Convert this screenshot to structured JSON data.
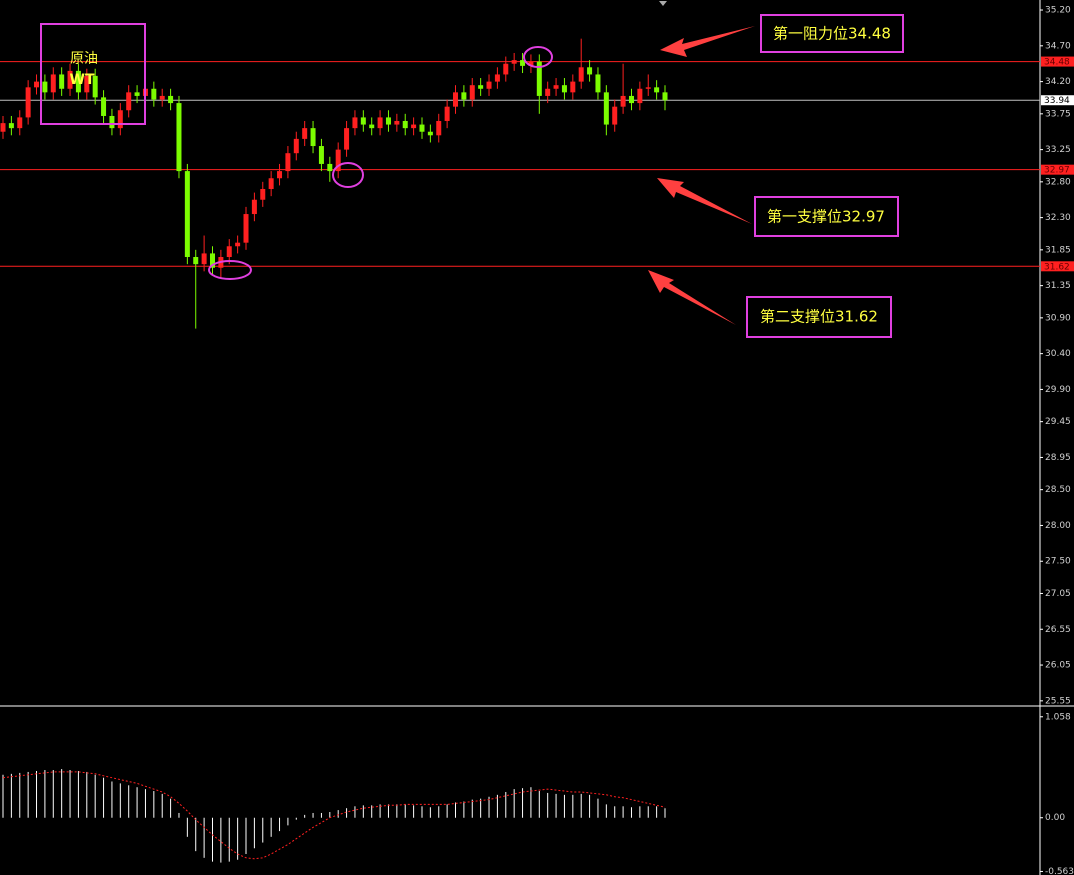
{
  "chart_data": [
    {
      "type": "candlestick",
      "up_color": "#ff2020",
      "down_color": "#7cfc00",
      "ylim": [
        25.45,
        35.34
      ],
      "yticks": [
        {
          "value": 35.2,
          "label": "35.20"
        },
        {
          "value": 34.7,
          "label": "34.70"
        },
        {
          "value": 34.2,
          "label": "34.20"
        },
        {
          "value": 33.75,
          "label": "33.75"
        },
        {
          "value": 33.25,
          "label": "33.25"
        },
        {
          "value": 32.8,
          "label": "32.80"
        },
        {
          "value": 32.3,
          "label": "32.30"
        },
        {
          "value": 31.85,
          "label": "31.85"
        },
        {
          "value": 31.35,
          "label": "31.35"
        },
        {
          "value": 30.9,
          "label": "30.90"
        },
        {
          "value": 30.4,
          "label": "30.40"
        },
        {
          "value": 29.9,
          "label": "29.90"
        },
        {
          "value": 29.45,
          "label": "29.45"
        },
        {
          "value": 28.95,
          "label": "28.95"
        },
        {
          "value": 28.5,
          "label": "28.50"
        },
        {
          "value": 28,
          "label": "28.00"
        },
        {
          "value": 27.5,
          "label": "27.50"
        },
        {
          "value": 27.05,
          "label": "27.05"
        },
        {
          "value": 26.55,
          "label": "26.55"
        },
        {
          "value": 26.05,
          "label": "26.05"
        },
        {
          "value": 25.55,
          "label": "25.55"
        }
      ],
      "levels": [
        {
          "value": 34.48,
          "label": "34.48",
          "color": "#ff2020"
        },
        {
          "value": 33.94,
          "label": "33.94",
          "color": "#c0c0c0"
        },
        {
          "value": 32.97,
          "label": "32.97",
          "color": "#ff2020"
        },
        {
          "value": 31.62,
          "label": "31.62",
          "color": "#ff2020"
        }
      ],
      "title": [
        "原油",
        "WT"
      ],
      "annotations": [
        "第一阻力位34.48",
        "第一支撑位32.97",
        "第二支撑位31.62"
      ],
      "open": [
        33.5,
        33.62,
        33.55,
        33.7,
        34.12,
        34.2,
        34.05,
        34.3,
        34.1,
        34.35,
        34.05,
        34.28,
        33.98,
        33.72,
        33.55,
        33.8,
        34.05,
        34.0,
        34.1,
        33.95,
        34.0,
        33.9,
        32.95,
        31.75,
        31.65,
        31.8,
        31.6,
        31.75,
        31.9,
        31.95,
        32.35,
        32.55,
        32.7,
        32.85,
        32.95,
        33.2,
        33.4,
        33.55,
        33.3,
        33.05,
        32.95,
        33.25,
        33.55,
        33.7,
        33.6,
        33.55,
        33.7,
        33.6,
        33.65,
        33.55,
        33.6,
        33.5,
        33.45,
        33.65,
        33.85,
        34.05,
        33.95,
        34.15,
        34.1,
        34.2,
        34.3,
        34.45,
        34.5,
        34.42,
        34.48,
        34.0,
        34.1,
        34.15,
        34.05,
        34.2,
        34.4,
        34.3,
        34.05,
        33.6,
        33.85,
        34.0,
        33.9,
        34.1,
        34.12,
        34.05
      ],
      "high": [
        33.72,
        33.72,
        33.8,
        34.22,
        34.3,
        34.3,
        34.4,
        34.4,
        34.45,
        34.45,
        34.38,
        34.38,
        34.08,
        33.82,
        33.9,
        34.15,
        34.15,
        34.2,
        34.2,
        34.1,
        34.1,
        34.0,
        33.05,
        31.85,
        32.05,
        31.9,
        31.85,
        32.0,
        32.05,
        32.45,
        32.65,
        32.8,
        32.95,
        33.05,
        33.3,
        33.5,
        33.65,
        33.65,
        33.4,
        33.15,
        33.35,
        33.65,
        33.8,
        33.8,
        33.7,
        33.8,
        33.8,
        33.75,
        33.75,
        33.7,
        33.7,
        33.6,
        33.75,
        33.95,
        34.15,
        34.15,
        34.25,
        34.25,
        34.3,
        34.4,
        34.55,
        34.6,
        34.6,
        34.58,
        34.58,
        34.2,
        34.25,
        34.25,
        34.3,
        34.8,
        34.5,
        34.4,
        34.15,
        33.95,
        34.45,
        34.1,
        34.2,
        34.3,
        34.22,
        34.15
      ],
      "low": [
        33.4,
        33.45,
        33.45,
        33.6,
        34.02,
        33.95,
        33.95,
        34.0,
        34.0,
        33.95,
        33.95,
        33.88,
        33.62,
        33.45,
        33.45,
        33.7,
        33.9,
        33.9,
        33.85,
        33.85,
        33.8,
        32.85,
        31.65,
        30.75,
        31.55,
        31.5,
        31.45,
        31.65,
        31.8,
        31.85,
        32.25,
        32.45,
        32.6,
        32.75,
        32.85,
        33.1,
        33.3,
        33.2,
        32.95,
        32.8,
        32.85,
        33.15,
        33.45,
        33.5,
        33.45,
        33.45,
        33.5,
        33.5,
        33.45,
        33.45,
        33.4,
        33.35,
        33.35,
        33.55,
        33.75,
        33.85,
        33.85,
        34.0,
        34.0,
        34.1,
        34.2,
        34.35,
        34.32,
        34.32,
        33.75,
        33.9,
        34.0,
        33.95,
        33.95,
        34.1,
        34.2,
        33.95,
        33.45,
        33.5,
        33.75,
        33.8,
        33.8,
        34.0,
        33.95,
        33.8
      ],
      "close": [
        33.62,
        33.55,
        33.7,
        34.12,
        34.2,
        34.05,
        34.3,
        34.1,
        34.35,
        34.05,
        34.28,
        33.98,
        33.72,
        33.55,
        33.8,
        34.05,
        34.0,
        34.1,
        33.95,
        34.0,
        33.9,
        32.95,
        31.75,
        31.65,
        31.8,
        31.6,
        31.75,
        31.9,
        31.95,
        32.35,
        32.55,
        32.7,
        32.85,
        32.95,
        33.2,
        33.4,
        33.55,
        33.3,
        33.05,
        32.95,
        33.25,
        33.55,
        33.7,
        33.6,
        33.55,
        33.7,
        33.6,
        33.65,
        33.55,
        33.6,
        33.5,
        33.45,
        33.65,
        33.85,
        34.05,
        33.95,
        34.15,
        34.1,
        34.2,
        34.3,
        34.45,
        34.5,
        34.42,
        34.48,
        34.0,
        34.1,
        34.15,
        34.05,
        34.2,
        34.4,
        34.3,
        34.05,
        33.6,
        33.85,
        34.0,
        33.9,
        34.1,
        34.12,
        34.05,
        33.94
      ]
    },
    {
      "type": "macd",
      "ylim": [
        -0.6,
        1.15
      ],
      "yticks": [
        1.058,
        {
          "value": 0,
          "label": "0.00"
        },
        -0.563
      ],
      "series": [
        {
          "color": "#ffffff",
          "values": [
            0.45,
            0.46,
            0.47,
            0.48,
            0.49,
            0.5,
            0.5,
            0.51,
            0.5,
            0.49,
            0.48,
            0.45,
            0.42,
            0.38,
            0.36,
            0.34,
            0.32,
            0.3,
            0.28,
            0.25,
            0.2,
            0.05,
            -0.2,
            -0.35,
            -0.42,
            -0.46,
            -0.47,
            -0.46,
            -0.44,
            -0.38,
            -0.32,
            -0.26,
            -0.2,
            -0.14,
            -0.08,
            -0.02,
            0.03,
            0.05,
            0.05,
            0.06,
            0.08,
            0.1,
            0.12,
            0.13,
            0.13,
            0.14,
            0.14,
            0.14,
            0.14,
            0.13,
            0.12,
            0.11,
            0.12,
            0.14,
            0.16,
            0.17,
            0.19,
            0.2,
            0.22,
            0.24,
            0.27,
            0.3,
            0.31,
            0.32,
            0.28,
            0.26,
            0.25,
            0.24,
            0.24,
            0.25,
            0.24,
            0.2,
            0.14,
            0.12,
            0.12,
            0.11,
            0.12,
            0.12,
            0.12,
            0.1
          ]
        },
        {
          "color": "#ff2020",
          "values": [
            0.42,
            0.43,
            0.44,
            0.45,
            0.46,
            0.47,
            0.48,
            0.48,
            0.48,
            0.48,
            0.47,
            0.46,
            0.44,
            0.42,
            0.4,
            0.38,
            0.36,
            0.33,
            0.3,
            0.27,
            0.22,
            0.15,
            0.07,
            -0.02,
            -0.1,
            -0.18,
            -0.25,
            -0.32,
            -0.38,
            -0.42,
            -0.43,
            -0.42,
            -0.38,
            -0.33,
            -0.28,
            -0.22,
            -0.16,
            -0.1,
            -0.05,
            0.0,
            0.03,
            0.06,
            0.08,
            0.1,
            0.11,
            0.12,
            0.13,
            0.13,
            0.14,
            0.14,
            0.14,
            0.14,
            0.14,
            0.14,
            0.15,
            0.16,
            0.17,
            0.18,
            0.19,
            0.21,
            0.23,
            0.25,
            0.27,
            0.28,
            0.29,
            0.3,
            0.29,
            0.28,
            0.27,
            0.27,
            0.26,
            0.25,
            0.24,
            0.22,
            0.21,
            0.19,
            0.17,
            0.15,
            0.13,
            0.11
          ]
        }
      ]
    }
  ]
}
